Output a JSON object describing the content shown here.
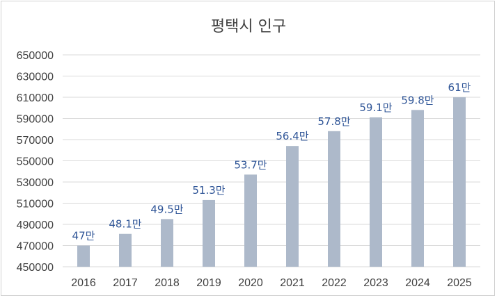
{
  "chart_data": {
    "type": "bar",
    "title": "평택시 인구",
    "categories": [
      "2016",
      "2017",
      "2018",
      "2019",
      "2020",
      "2021",
      "2022",
      "2023",
      "2024",
      "2025"
    ],
    "values": [
      470000,
      481000,
      495000,
      513000,
      537000,
      564000,
      578000,
      591000,
      598000,
      610000
    ],
    "data_labels": [
      "47만",
      "48.1만",
      "49.5만",
      "51.3만",
      "53.7만",
      "56.4만",
      "57.8만",
      "59.1만",
      "59.8만",
      "61만"
    ],
    "ylim": [
      450000,
      650000
    ],
    "y_ticks": [
      "450000",
      "470000",
      "490000",
      "510000",
      "530000",
      "550000",
      "570000",
      "590000",
      "610000",
      "630000",
      "650000"
    ],
    "grid": true,
    "legend": "none",
    "colors": {
      "bar": "#adb9ca",
      "data_label": "#2f5597",
      "grid": "#d9d9d9",
      "axis_text": "#404040"
    }
  }
}
